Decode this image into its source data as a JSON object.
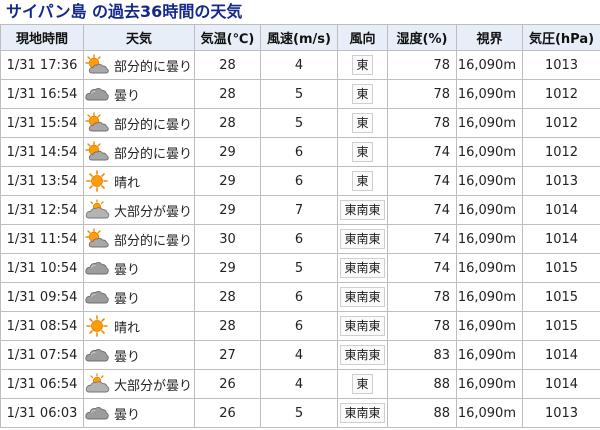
{
  "page": {
    "title": "サイパン島 の過去36時間の天気"
  },
  "table": {
    "headers": {
      "time": "現地時間",
      "weather": "天気",
      "temp": "気温(℃)",
      "wind": "風速(m/s)",
      "direction": "風向",
      "humidity": "湿度(%)",
      "visibility": "視界",
      "pressure": "気圧(hPa)"
    },
    "rows": [
      {
        "time": "1/31 17:36",
        "icon": "partly-cloudy-icon",
        "weather": "部分的に曇り",
        "temp": "28",
        "wind": "4",
        "dir": "東",
        "hum": "78",
        "vis": "16,090m",
        "pres": "1013"
      },
      {
        "time": "1/31 16:54",
        "icon": "cloudy-icon",
        "weather": "曇り",
        "temp": "28",
        "wind": "5",
        "dir": "東",
        "hum": "78",
        "vis": "16,090m",
        "pres": "1012"
      },
      {
        "time": "1/31 15:54",
        "icon": "partly-cloudy-icon",
        "weather": "部分的に曇り",
        "temp": "28",
        "wind": "5",
        "dir": "東",
        "hum": "78",
        "vis": "16,090m",
        "pres": "1012"
      },
      {
        "time": "1/31 14:54",
        "icon": "partly-cloudy-icon",
        "weather": "部分的に曇り",
        "temp": "29",
        "wind": "6",
        "dir": "東",
        "hum": "74",
        "vis": "16,090m",
        "pres": "1012"
      },
      {
        "time": "1/31 13:54",
        "icon": "sunny-icon",
        "weather": "晴れ",
        "temp": "29",
        "wind": "6",
        "dir": "東",
        "hum": "74",
        "vis": "16,090m",
        "pres": "1013"
      },
      {
        "time": "1/31 12:54",
        "icon": "mostly-cloudy-icon",
        "weather": "大部分が曇り",
        "temp": "29",
        "wind": "7",
        "dir": "東南東",
        "hum": "74",
        "vis": "16,090m",
        "pres": "1014"
      },
      {
        "time": "1/31 11:54",
        "icon": "partly-cloudy-icon",
        "weather": "部分的に曇り",
        "temp": "30",
        "wind": "6",
        "dir": "東南東",
        "hum": "74",
        "vis": "16,090m",
        "pres": "1014"
      },
      {
        "time": "1/31 10:54",
        "icon": "cloudy-icon",
        "weather": "曇り",
        "temp": "29",
        "wind": "5",
        "dir": "東南東",
        "hum": "74",
        "vis": "16,090m",
        "pres": "1015"
      },
      {
        "time": "1/31 09:54",
        "icon": "cloudy-icon",
        "weather": "曇り",
        "temp": "28",
        "wind": "6",
        "dir": "東南東",
        "hum": "78",
        "vis": "16,090m",
        "pres": "1015"
      },
      {
        "time": "1/31 08:54",
        "icon": "sunny-icon",
        "weather": "晴れ",
        "temp": "28",
        "wind": "6",
        "dir": "東南東",
        "hum": "78",
        "vis": "16,090m",
        "pres": "1015"
      },
      {
        "time": "1/31 07:54",
        "icon": "cloudy-icon",
        "weather": "曇り",
        "temp": "27",
        "wind": "4",
        "dir": "東南東",
        "hum": "83",
        "vis": "16,090m",
        "pres": "1014"
      },
      {
        "time": "1/31 06:54",
        "icon": "mostly-cloudy-icon",
        "weather": "大部分が曇り",
        "temp": "26",
        "wind": "4",
        "dir": "東",
        "hum": "88",
        "vis": "16,090m",
        "pres": "1014"
      },
      {
        "time": "1/31 06:03",
        "icon": "cloudy-icon",
        "weather": "曇り",
        "temp": "26",
        "wind": "5",
        "dir": "東南東",
        "hum": "88",
        "vis": "16,090m",
        "pres": "1013"
      }
    ]
  }
}
